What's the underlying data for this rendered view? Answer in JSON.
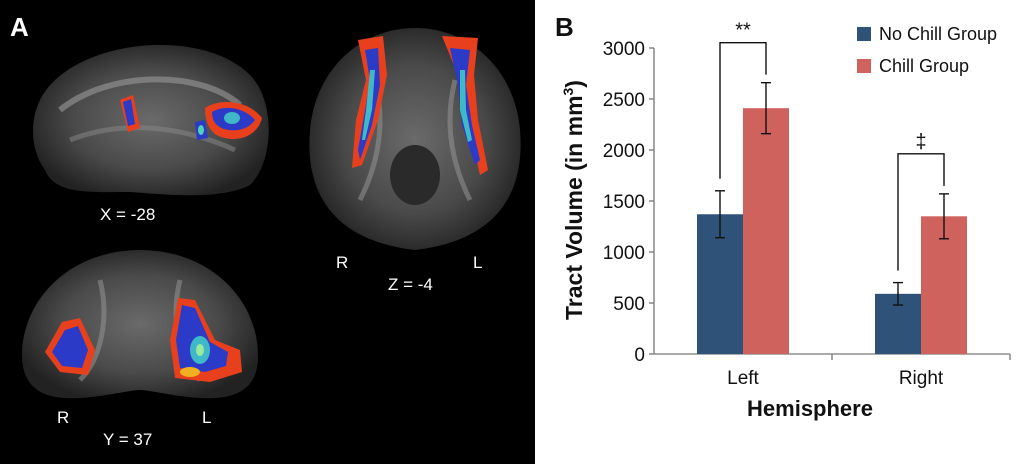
{
  "panel_a": {
    "letter": "A",
    "sagittal": {
      "coord": "X = -28"
    },
    "axial": {
      "coord": "Z = -4",
      "left_side": "R",
      "right_side": "L"
    },
    "coronal": {
      "coord": "Y = 37",
      "left_side": "R",
      "right_side": "L"
    }
  },
  "panel_b": {
    "letter": "B"
  },
  "chart_data": {
    "type": "bar",
    "title": "",
    "xlabel": "Hemisphere",
    "ylabel": "Tract Volume (in mm³)",
    "ylabel_base": "Tract Volume (in mm",
    "ylabel_sup": "3",
    "ylabel_end": ")",
    "ylim": [
      0,
      3000
    ],
    "yticks": [
      "0",
      "500",
      "1000",
      "1500",
      "2000",
      "2500",
      "3000"
    ],
    "categories": [
      "Left",
      "Right"
    ],
    "legend_position": "top-right",
    "series": [
      {
        "name": "No Chill Group",
        "color": "#2f5278",
        "values": [
          1370,
          590
        ],
        "errors": [
          230,
          110
        ]
      },
      {
        "name": "Chill Group",
        "color": "#d0625e",
        "values": [
          2410,
          1350
        ],
        "errors": [
          250,
          220
        ]
      }
    ],
    "annotations": [
      {
        "category": "Left",
        "symbol": "**"
      },
      {
        "category": "Right",
        "symbol": "‡"
      }
    ]
  }
}
